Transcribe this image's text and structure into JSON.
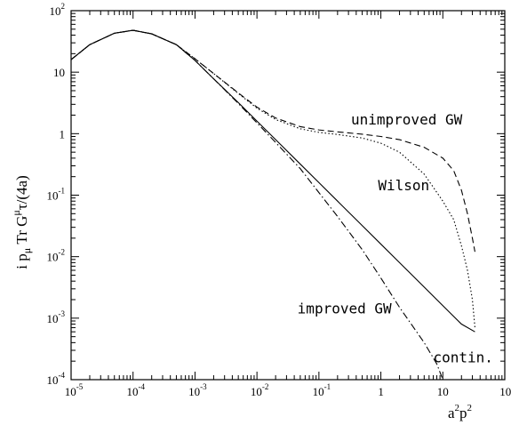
{
  "chart_data": {
    "type": "line",
    "title": "",
    "xlabel": "a²p²",
    "ylabel": "i pμ Tr Gμτ/(4a)",
    "x_scale": "log",
    "y_scale": "log",
    "xlim": [
      1e-05,
      100
    ],
    "ylim": [
      0.0001,
      100
    ],
    "grid": false,
    "legend": "none",
    "x_ticks": [
      {
        "base": "10",
        "exp": "-5"
      },
      {
        "base": "10",
        "exp": "-4"
      },
      {
        "base": "10",
        "exp": "-3"
      },
      {
        "base": "10",
        "exp": "-2"
      },
      {
        "base": "10",
        "exp": "-1"
      },
      {
        "base": "1",
        "exp": ""
      },
      {
        "base": "10",
        "exp": ""
      },
      {
        "base": "10",
        "exp": "2"
      }
    ],
    "y_ticks": [
      {
        "base": "10",
        "exp": "-4"
      },
      {
        "base": "10",
        "exp": "-3"
      },
      {
        "base": "10",
        "exp": "-2"
      },
      {
        "base": "10",
        "exp": "-1"
      },
      {
        "base": "1",
        "exp": ""
      },
      {
        "base": "10",
        "exp": ""
      },
      {
        "base": "10",
        "exp": "2"
      }
    ],
    "series": [
      {
        "name": "contin.",
        "style": "solid",
        "x": [
          1e-05,
          2e-05,
          5e-05,
          0.0001,
          0.0002,
          0.0005,
          0.001,
          0.002,
          0.005,
          0.01,
          0.02,
          0.05,
          0.1,
          0.2,
          0.5,
          1,
          2,
          5,
          10,
          20,
          33
        ],
        "y": [
          16,
          28,
          43,
          48,
          42,
          28,
          15.5,
          7.8,
          3.2,
          1.6,
          0.8,
          0.32,
          0.16,
          0.08,
          0.032,
          0.016,
          0.008,
          0.0032,
          0.0016,
          0.0008,
          0.0006
        ]
      },
      {
        "name": "Wilson",
        "style": "dotted",
        "x": [
          1e-05,
          2e-05,
          5e-05,
          0.0001,
          0.0002,
          0.0005,
          0.001,
          0.002,
          0.005,
          0.01,
          0.02,
          0.05,
          0.1,
          0.2,
          0.5,
          1,
          2,
          5,
          10,
          15,
          20,
          25,
          30,
          33
        ],
        "y": [
          16,
          28,
          43,
          48,
          42,
          28,
          16.5,
          9.5,
          4.5,
          2.6,
          1.7,
          1.2,
          1.05,
          0.97,
          0.85,
          0.7,
          0.5,
          0.22,
          0.08,
          0.04,
          0.015,
          0.006,
          0.002,
          0.0007
        ]
      },
      {
        "name": "unimproved GW",
        "style": "dashed",
        "x": [
          1e-05,
          2e-05,
          5e-05,
          0.0001,
          0.0002,
          0.0005,
          0.001,
          0.002,
          0.005,
          0.01,
          0.02,
          0.05,
          0.1,
          0.2,
          0.5,
          1,
          2,
          5,
          10,
          15,
          20,
          25,
          30,
          33
        ],
        "y": [
          16,
          28,
          43,
          48,
          42,
          28,
          16.5,
          9.5,
          4.6,
          2.7,
          1.8,
          1.3,
          1.15,
          1.07,
          0.98,
          0.9,
          0.8,
          0.6,
          0.4,
          0.25,
          0.12,
          0.05,
          0.02,
          0.012
        ]
      },
      {
        "name": "improved GW",
        "style": "dashdot",
        "x": [
          1e-05,
          2e-05,
          5e-05,
          0.0001,
          0.0002,
          0.0005,
          0.001,
          0.002,
          0.005,
          0.01,
          0.02,
          0.05,
          0.1,
          0.2,
          0.5,
          1,
          2,
          5,
          8,
          10
        ],
        "y": [
          16,
          28,
          43,
          48,
          42,
          28,
          15.5,
          7.8,
          3.1,
          1.5,
          0.72,
          0.27,
          0.11,
          0.045,
          0.013,
          0.0045,
          0.0015,
          0.0004,
          0.00018,
          0.0001
        ]
      }
    ],
    "annotations": [
      {
        "text": "unimproved GW",
        "x": 0.33,
        "y": 1.4
      },
      {
        "text": "Wilson",
        "x": 0.9,
        "y": 0.12
      },
      {
        "text": "improved GW",
        "x": 0.045,
        "y": 0.0012
      },
      {
        "text": "contin.",
        "x": 7,
        "y": 0.00019
      }
    ]
  }
}
